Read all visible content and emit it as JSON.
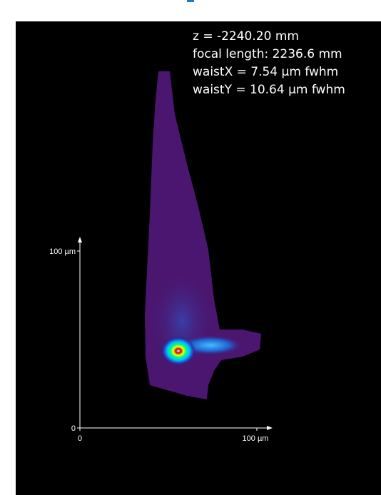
{
  "annotations": [
    "z = -2240.20 mm",
    "focal length: 2236.6 mm",
    "waistX = 7.54 µm fwhm",
    "waistY = 10.64 µm fwhm"
  ],
  "axes": {
    "y_max_label": "100 µm",
    "y_min_label": "0",
    "x_min_label": "0",
    "x_max_label": "100 µm"
  }
}
